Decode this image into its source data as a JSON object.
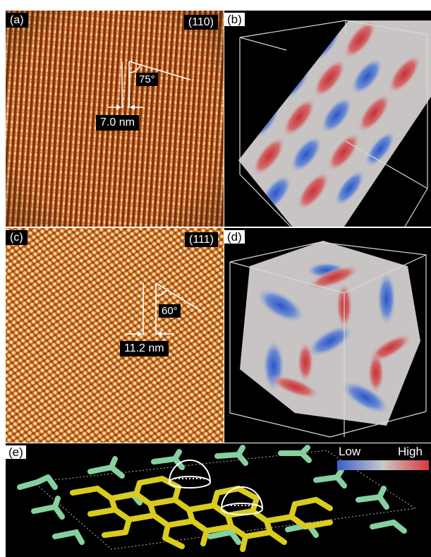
{
  "panels": {
    "a": {
      "label": "(a)",
      "plane": "(110)",
      "spacing": "7.0 nm",
      "angle": "75°"
    },
    "b": {
      "label": "(b)"
    },
    "c": {
      "label": "(c)",
      "plane": "(111)",
      "spacing": "11.2 nm",
      "angle": "60°"
    },
    "d": {
      "label": "(d)"
    },
    "e": {
      "label": "(e)"
    }
  },
  "legend": {
    "low": "Low",
    "high": "High",
    "colors": [
      "#3a5fcd",
      "#c9c9c9",
      "#d8393a"
    ]
  },
  "colors": {
    "afm_base": "#b4501a",
    "afm_light": "#f3c98a",
    "afm_dark": "#6e2a08",
    "network_yellow": "#d9cc1e",
    "network_green": "#86d0a0"
  }
}
